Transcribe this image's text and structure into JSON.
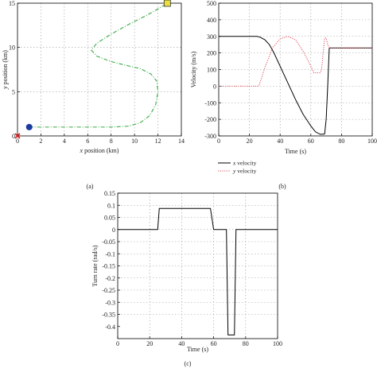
{
  "chart_data": [
    {
      "panel": "(a)",
      "type": "line",
      "xlabel_italic": "x",
      "xlabel_rest": " position (km)",
      "ylabel_italic": "y",
      "ylabel_rest": " position (km)",
      "xlim": [
        0,
        14
      ],
      "ylim": [
        0,
        15
      ],
      "xticks": [
        0,
        2,
        4,
        6,
        8,
        10,
        12,
        14
      ],
      "yticks": [
        0,
        5,
        10,
        15
      ],
      "grid": true,
      "colors": {
        "path": "#3aa845",
        "start": "#1c3a9e",
        "goal": "#e8e040",
        "origin": "#d62020"
      },
      "path": {
        "x": [
          1.0,
          2.0,
          4.0,
          6.0,
          8.0,
          9.5,
          10.5,
          11.3,
          11.8,
          12.0,
          11.9,
          11.4,
          10.5,
          9.2,
          8.0,
          6.8,
          6.3,
          6.8,
          8.0,
          9.5,
          11.0,
          12.2,
          12.8
        ],
        "y": [
          1.0,
          1.0,
          1.0,
          1.0,
          1.0,
          1.1,
          1.5,
          2.3,
          3.5,
          5.0,
          6.2,
          7.0,
          7.6,
          8.0,
          8.4,
          9.0,
          9.7,
          10.5,
          11.5,
          12.6,
          13.6,
          14.5,
          15.0
        ]
      },
      "start": {
        "x": 1.0,
        "y": 1.0
      },
      "goal": {
        "x": 12.8,
        "y": 15.0
      },
      "origin": {
        "x": 0.0,
        "y": 0.0
      }
    },
    {
      "panel": "(b)",
      "type": "line",
      "xlabel": "Time (s)",
      "ylabel": "Velocity (m/s)",
      "xlim": [
        0,
        100
      ],
      "ylim": [
        -300,
        500
      ],
      "xticks": [
        0,
        20,
        40,
        60,
        80,
        100
      ],
      "yticks": [
        -300,
        -200,
        -100,
        0,
        100,
        200,
        300,
        400,
        500
      ],
      "grid": true,
      "legend_position": "bottom-right-outside",
      "series": [
        {
          "name_italic": "x",
          "name_rest": " velocity",
          "color": "#000000",
          "style": "solid",
          "x": [
            0,
            25,
            27,
            30,
            33,
            36,
            40,
            45,
            50,
            55,
            60,
            63,
            66,
            67,
            68,
            69,
            70,
            71,
            72,
            100
          ],
          "y": [
            300,
            300,
            295,
            280,
            250,
            200,
            120,
            20,
            -80,
            -170,
            -240,
            -275,
            -290,
            -290,
            -290,
            -288,
            -200,
            0,
            230,
            230
          ]
        },
        {
          "name_italic": "y",
          "name_rest": " velocity",
          "color": "#e0505a",
          "style": "dotted",
          "x": [
            0,
            26,
            26.5,
            30,
            35,
            40,
            45,
            50,
            55,
            60,
            62,
            66,
            67,
            68,
            69,
            70,
            71,
            72,
            100
          ],
          "y": [
            0,
            0,
            10,
            110,
            230,
            285,
            300,
            280,
            210,
            120,
            80,
            80,
            100,
            200,
            290,
            290,
            250,
            230,
            230
          ]
        }
      ]
    },
    {
      "panel": "(c)",
      "type": "line",
      "xlabel": "Time (s)",
      "ylabel": "Turn rate (rad/s)",
      "xlim": [
        0,
        100
      ],
      "ylim": [
        -0.45,
        0.15
      ],
      "xticks": [
        0,
        20,
        40,
        60,
        80,
        100
      ],
      "yticks": [
        -0.4,
        -0.35,
        -0.3,
        -0.25,
        -0.2,
        -0.15,
        -0.1,
        -0.05,
        0,
        0.05,
        0.1,
        0.15
      ],
      "ytick_labels": [
        "-0.4",
        "-0.35",
        "-0.3",
        "-0.25",
        "-0.2",
        "-0.15",
        "-0.1",
        "-0.05",
        "0",
        "0.05",
        "0.1",
        "0.15"
      ],
      "grid": true,
      "series": [
        {
          "color": "#000000",
          "style": "solid",
          "x": [
            0,
            25,
            26,
            58,
            60,
            68,
            69,
            73,
            74,
            100
          ],
          "y": [
            0,
            0,
            0.087,
            0.087,
            0,
            0,
            -0.435,
            -0.435,
            0,
            0
          ]
        }
      ]
    }
  ]
}
